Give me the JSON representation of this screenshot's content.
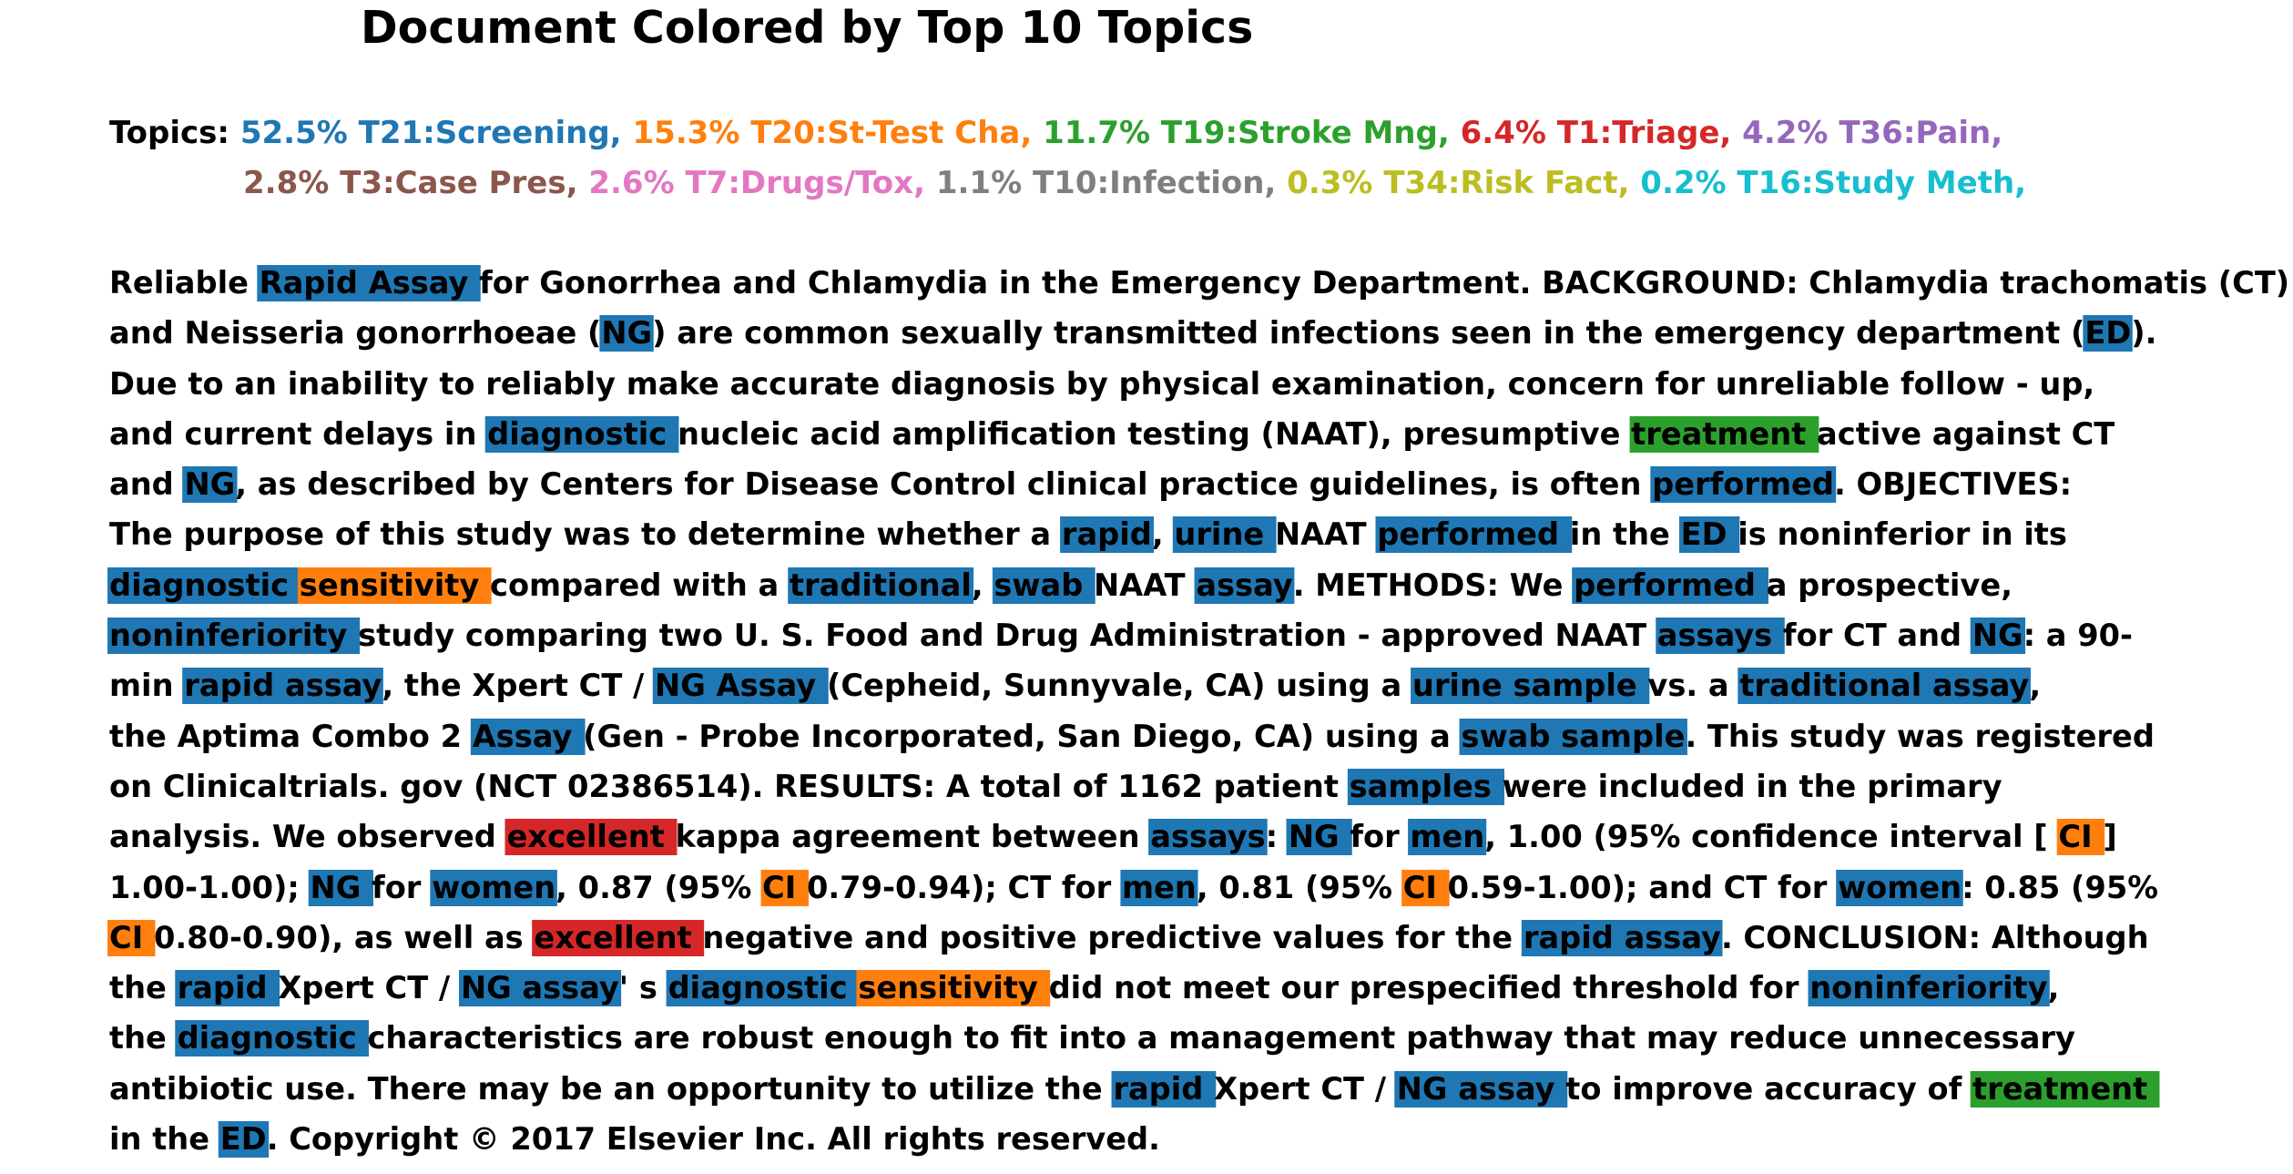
{
  "title": "Document Colored by Top 10 Topics",
  "topics_label": "Topics:",
  "topics": [
    {
      "text": "52.5% T21:Screening,",
      "color": "#1f77b4"
    },
    {
      "text": "15.3% T20:St-Test Cha,",
      "color": "#ff7f0e"
    },
    {
      "text": "11.7% T19:Stroke Mng,",
      "color": "#2ca02c"
    },
    {
      "text": "6.4% T1:Triage,",
      "color": "#d62728"
    },
    {
      "text": "4.2% T36:Pain,",
      "color": "#9467bd"
    },
    {
      "text": "2.8% T3:Case Pres,",
      "color": "#8c564b"
    },
    {
      "text": "2.6% T7:Drugs/Tox,",
      "color": "#e377c2"
    },
    {
      "text": "1.1% T10:Infection,",
      "color": "#7f7f7f"
    },
    {
      "text": "0.3% T34:Risk Fact,",
      "color": "#bcbd22"
    },
    {
      "text": "0.2% T16:Study Meth,",
      "color": "#17becf"
    }
  ],
  "lines": [
    [
      [
        "Reliable ",
        -1
      ],
      [
        "Rapid Assay ",
        0
      ],
      [
        "for Gonorrhea and Chlamydia in the Emergency Department. BACKGROUND: Chlamydia trachomatis (CT)",
        -1
      ]
    ],
    [
      [
        "and Neisseria gonorrhoeae (",
        -1
      ],
      [
        "NG",
        0
      ],
      [
        ") are common sexually transmitted infections seen in the emergency department (",
        -1
      ],
      [
        "ED",
        0
      ],
      [
        ").",
        -1
      ]
    ],
    [
      [
        "Due to an inability to reliably make accurate diagnosis by physical examination, concern for unreliable follow - up,",
        -1
      ]
    ],
    [
      [
        "and current delays in ",
        -1
      ],
      [
        "diagnostic ",
        0
      ],
      [
        "nucleic acid amplification testing (NAAT), presumptive ",
        -1
      ],
      [
        "treatment ",
        2
      ],
      [
        "active against CT",
        -1
      ]
    ],
    [
      [
        "and ",
        -1
      ],
      [
        "NG",
        0
      ],
      [
        ", as described by Centers for Disease Control clinical practice guidelines, is often ",
        -1
      ],
      [
        "performed",
        0
      ],
      [
        ". OBJECTIVES:",
        -1
      ]
    ],
    [
      [
        "The purpose of this study was to determine whether a ",
        -1
      ],
      [
        "rapid",
        0
      ],
      [
        ", ",
        -1
      ],
      [
        "urine ",
        0
      ],
      [
        "NAAT ",
        -1
      ],
      [
        "performed ",
        0
      ],
      [
        "in the ",
        -1
      ],
      [
        "ED ",
        0
      ],
      [
        "is noninferior in its",
        -1
      ]
    ],
    [
      [
        "diagnostic ",
        0
      ],
      [
        "sensitivity ",
        1
      ],
      [
        "compared with a ",
        -1
      ],
      [
        "traditional",
        0
      ],
      [
        ", ",
        -1
      ],
      [
        "swab ",
        0
      ],
      [
        "NAAT ",
        -1
      ],
      [
        "assay",
        0
      ],
      [
        ". METHODS: We ",
        -1
      ],
      [
        "performed ",
        0
      ],
      [
        "a prospective,",
        -1
      ]
    ],
    [
      [
        "noninferiority ",
        0
      ],
      [
        "study comparing two U. S. Food and Drug Administration - approved NAAT ",
        -1
      ],
      [
        "assays ",
        0
      ],
      [
        "for CT and ",
        -1
      ],
      [
        "NG",
        0
      ],
      [
        ": a 90-",
        -1
      ]
    ],
    [
      [
        "min ",
        -1
      ],
      [
        "rapid assay",
        0
      ],
      [
        ", the Xpert CT / ",
        -1
      ],
      [
        "NG Assay ",
        0
      ],
      [
        "(Cepheid, Sunnyvale, CA) using a ",
        -1
      ],
      [
        "urine sample ",
        0
      ],
      [
        "vs. a ",
        -1
      ],
      [
        "traditional assay",
        0
      ],
      [
        ",",
        -1
      ]
    ],
    [
      [
        "the Aptima Combo 2 ",
        -1
      ],
      [
        "Assay ",
        0
      ],
      [
        "(Gen - Probe Incorporated, San Diego, CA) using a ",
        -1
      ],
      [
        "swab sample",
        0
      ],
      [
        ". This study was registered",
        -1
      ]
    ],
    [
      [
        "on Clinicaltrials. gov (NCT 02386514). RESULTS: A total of 1162 patient ",
        -1
      ],
      [
        "samples ",
        0
      ],
      [
        "were included in the primary",
        -1
      ]
    ],
    [
      [
        "analysis. We observed ",
        -1
      ],
      [
        "excellent ",
        3
      ],
      [
        "kappa agreement between ",
        -1
      ],
      [
        "assays",
        0
      ],
      [
        ": ",
        -1
      ],
      [
        "NG ",
        0
      ],
      [
        "for ",
        -1
      ],
      [
        "men",
        0
      ],
      [
        ", 1.00 (95% confidence interval [ ",
        -1
      ],
      [
        "CI ",
        1
      ],
      [
        "]",
        -1
      ]
    ],
    [
      [
        "1.00-1.00); ",
        -1
      ],
      [
        "NG ",
        0
      ],
      [
        "for ",
        -1
      ],
      [
        "women",
        0
      ],
      [
        ", 0.87 (95% ",
        -1
      ],
      [
        "CI ",
        1
      ],
      [
        "0.79-0.94); CT for ",
        -1
      ],
      [
        "men",
        0
      ],
      [
        ", 0.81 (95% ",
        -1
      ],
      [
        "CI ",
        1
      ],
      [
        "0.59-1.00); and CT for ",
        -1
      ],
      [
        "women",
        0
      ],
      [
        ": 0.85 (95%",
        -1
      ]
    ],
    [
      [
        "CI ",
        1
      ],
      [
        "0.80-0.90), as well as ",
        -1
      ],
      [
        "excellent ",
        3
      ],
      [
        "negative and positive predictive values for the ",
        -1
      ],
      [
        "rapid assay",
        0
      ],
      [
        ". CONCLUSION: Although",
        -1
      ]
    ],
    [
      [
        "the ",
        -1
      ],
      [
        "rapid ",
        0
      ],
      [
        "Xpert CT / ",
        -1
      ],
      [
        "NG assay",
        0
      ],
      [
        "' s ",
        -1
      ],
      [
        "diagnostic ",
        0
      ],
      [
        "sensitivity ",
        1
      ],
      [
        "did not meet our prespecified threshold for ",
        -1
      ],
      [
        "noninferiority",
        0
      ],
      [
        ",",
        -1
      ]
    ],
    [
      [
        "the ",
        -1
      ],
      [
        "diagnostic ",
        0
      ],
      [
        "characteristics are robust enough to fit into a management pathway that may reduce unnecessary",
        -1
      ]
    ],
    [
      [
        "antibiotic use. There may be an opportunity to utilize the ",
        -1
      ],
      [
        "rapid ",
        0
      ],
      [
        "Xpert CT / ",
        -1
      ],
      [
        "NG assay ",
        0
      ],
      [
        "to improve accuracy of ",
        -1
      ],
      [
        "treatment ",
        2
      ]
    ],
    [
      [
        "in the ",
        -1
      ],
      [
        "ED",
        0
      ],
      [
        ". Copyright © 2017 Elsevier Inc. All rights reserved.",
        -1
      ]
    ]
  ]
}
